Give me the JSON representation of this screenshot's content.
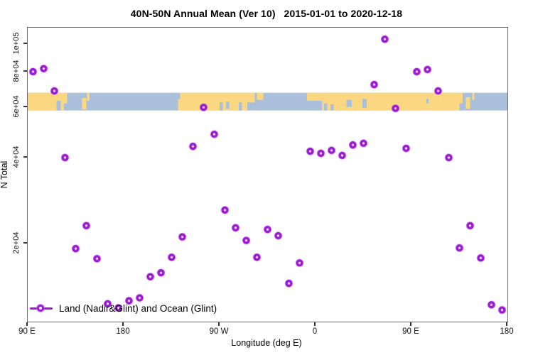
{
  "title": "40N-50N Annual Mean (Ver 10)   2015-01-01 to 2020-12-18",
  "colors": {
    "point": "#9a1cd3",
    "point_glow": "#c863e6",
    "land": "#FCD781",
    "ocean": "#A9BFDA",
    "axis_box": "#6e6e6e",
    "tick_text": "#111111"
  },
  "chart_data": {
    "type": "scatter",
    "title": "40N-50N Annual Mean (Ver 10)   2015-01-01 to 2020-12-18",
    "xlabel": "Longitude (deg E)",
    "ylabel": "N Total",
    "grid": false,
    "x_axis": {
      "lim": [
        90,
        540
      ],
      "ticks": [
        {
          "value": 90,
          "label": "90 E"
        },
        {
          "value": 180,
          "label": "180"
        },
        {
          "value": 270,
          "label": "90 W"
        },
        {
          "value": 360,
          "label": "0"
        },
        {
          "value": 450,
          "label": "90 E"
        },
        {
          "value": 540,
          "label": "180"
        }
      ]
    },
    "y_axis": {
      "scale": "log",
      "lim": [
        10650,
        114100
      ],
      "ticks": [
        {
          "value": 100000,
          "label": "1e+05"
        },
        {
          "value": 80000,
          "label": "8e+04"
        },
        {
          "value": 60000,
          "label": "6e+04"
        },
        {
          "value": 40000,
          "label": "4e+04"
        },
        {
          "value": 20000,
          "label": "2e+04"
        }
      ]
    },
    "legend": {
      "label": "Land (Nadir&Glint) and Ocean (Glint)",
      "position": "bottom-left"
    },
    "series": [
      {
        "name": "Land (Nadir&Glint) and Ocean (Glint)",
        "marker": "open-circle",
        "color": "#9a1cd3",
        "points": [
          [
            95,
            80000
          ],
          [
            105,
            82000
          ],
          [
            115,
            68500
          ],
          [
            125,
            40000
          ],
          [
            135,
            19200
          ],
          [
            145,
            23100
          ],
          [
            155,
            17700
          ],
          [
            165,
            12300
          ],
          [
            175,
            11900
          ],
          [
            185,
            12600
          ],
          [
            195,
            12900
          ],
          [
            205,
            15300
          ],
          [
            215,
            15800
          ],
          [
            225,
            17900
          ],
          [
            235,
            21100
          ],
          [
            245,
            43800
          ],
          [
            255,
            60000
          ],
          [
            265,
            48300
          ],
          [
            275,
            26200
          ],
          [
            285,
            22700
          ],
          [
            295,
            20500
          ],
          [
            305,
            17900
          ],
          [
            315,
            22400
          ],
          [
            325,
            21300
          ],
          [
            335,
            14500
          ],
          [
            345,
            17100
          ],
          [
            355,
            42100
          ],
          [
            365,
            41400
          ],
          [
            375,
            42400
          ],
          [
            385,
            40700
          ],
          [
            395,
            44300
          ],
          [
            405,
            44900
          ],
          [
            415,
            72100
          ],
          [
            425,
            104000
          ],
          [
            435,
            59500
          ],
          [
            445,
            43100
          ],
          [
            455,
            80000
          ],
          [
            465,
            81400
          ],
          [
            475,
            68500
          ],
          [
            485,
            40000
          ],
          [
            495,
            19300
          ],
          [
            505,
            23100
          ],
          [
            515,
            17800
          ],
          [
            525,
            12200
          ],
          [
            535,
            11700
          ]
        ]
      }
    ],
    "map_band": {
      "description": "40N-50N land/ocean world strip",
      "y_top_value": 67500,
      "y_bottom_value": 58500,
      "ocean_color": "#A9BFDA",
      "land_color": "#FCD781",
      "land_segments": [
        {
          "from": 90,
          "to": 124,
          "y0": 0,
          "y1": 1
        },
        {
          "from": 124,
          "to": 127,
          "y0": 0,
          "y1": 0.6
        },
        {
          "from": 141,
          "to": 145,
          "y0": 0.3,
          "y1": 0.95
        },
        {
          "from": 145.5,
          "to": 148,
          "y0": 0,
          "y1": 0.45
        },
        {
          "from": 231,
          "to": 234,
          "y0": 0.35,
          "y1": 1
        },
        {
          "from": 233,
          "to": 296,
          "y0": 0,
          "y1": 1
        },
        {
          "from": 296,
          "to": 303,
          "y0": 0,
          "y1": 0.55
        },
        {
          "from": 305,
          "to": 311,
          "y0": 0,
          "y1": 0.4
        },
        {
          "from": 352,
          "to": 366,
          "y0": 0,
          "y1": 0.45
        },
        {
          "from": 366,
          "to": 498,
          "y0": 0,
          "y1": 1
        },
        {
          "from": 501,
          "to": 505,
          "y0": 0.25,
          "y1": 0.9
        },
        {
          "from": 507,
          "to": 509,
          "y0": 0,
          "y1": 0.4
        }
      ],
      "water_patches": [
        {
          "from": 117,
          "to": 121,
          "y0": 0.45,
          "y1": 1
        },
        {
          "from": 270,
          "to": 273,
          "y0": 0.55,
          "y1": 1
        },
        {
          "from": 276,
          "to": 279,
          "y0": 0.5,
          "y1": 0.9
        },
        {
          "from": 288,
          "to": 291,
          "y0": 0.55,
          "y1": 1
        },
        {
          "from": 357,
          "to": 360,
          "y0": 0.5,
          "y1": 1
        },
        {
          "from": 368,
          "to": 371,
          "y0": 0.6,
          "y1": 1
        },
        {
          "from": 374,
          "to": 377,
          "y0": 0.65,
          "y1": 1
        },
        {
          "from": 389,
          "to": 394,
          "y0": 0.4,
          "y1": 0.8
        },
        {
          "from": 404,
          "to": 408,
          "y0": 0.35,
          "y1": 0.85
        },
        {
          "from": 464,
          "to": 466,
          "y0": 0.35,
          "y1": 0.6
        },
        {
          "from": 495,
          "to": 498,
          "y0": 0.6,
          "y1": 1
        }
      ]
    }
  }
}
